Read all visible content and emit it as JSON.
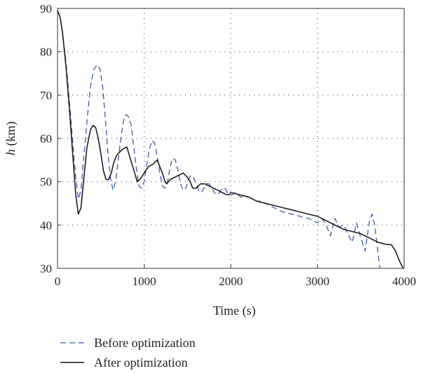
{
  "chart_data": {
    "type": "line",
    "xlabel": "Time (s)",
    "ylabel_var": "h",
    "ylabel_unit": " (km)",
    "xlim": [
      0,
      4000
    ],
    "ylim": [
      30,
      90
    ],
    "xticks": [
      0,
      1000,
      2000,
      3000,
      4000
    ],
    "yticks": [
      30,
      40,
      50,
      60,
      70,
      80,
      90
    ],
    "grid": true,
    "legend_position": "bottom-left, below plot",
    "series": [
      {
        "name": "Before optimization",
        "color": "#3a5aa8",
        "style": "dashed",
        "x": [
          0,
          30,
          60,
          100,
          140,
          180,
          210,
          240,
          270,
          300,
          340,
          380,
          420,
          460,
          490,
          520,
          550,
          580,
          610,
          640,
          670,
          700,
          730,
          760,
          790,
          820,
          850,
          880,
          910,
          940,
          970,
          1000,
          1030,
          1060,
          1090,
          1120,
          1150,
          1180,
          1210,
          1240,
          1270,
          1300,
          1330,
          1360,
          1390,
          1420,
          1450,
          1480,
          1510,
          1540,
          1570,
          1600,
          1630,
          1660,
          1690,
          1720,
          1750,
          1780,
          1810,
          1840,
          1870,
          1900,
          1930,
          1960,
          1990,
          2020,
          2050,
          2080,
          2110,
          2140,
          2170,
          2200,
          2250,
          2300,
          2350,
          2400,
          2450,
          2500,
          2600,
          2700,
          2800,
          2900,
          2950,
          3000,
          3050,
          3100,
          3150,
          3200,
          3250,
          3300,
          3350,
          3400,
          3450,
          3500,
          3550,
          3600,
          3630,
          3660,
          3690,
          3720,
          3740
        ],
        "y": [
          89.5,
          88,
          84,
          77,
          68,
          58,
          51,
          46,
          48,
          55,
          64,
          72,
          76,
          77,
          76,
          72,
          65,
          57,
          51,
          48,
          50,
          55,
          60,
          64,
          65.5,
          65,
          63,
          58,
          53,
          49,
          48.5,
          50,
          54,
          57.5,
          59.5,
          59,
          56,
          52,
          49,
          48.5,
          50,
          53.5,
          55.5,
          55,
          52.5,
          49.5,
          48,
          48.5,
          50.5,
          51.5,
          51,
          49.5,
          48,
          47.5,
          48.5,
          49.5,
          49.5,
          48.5,
          47.5,
          47,
          47.5,
          48.5,
          48.5,
          47.5,
          47,
          47,
          47.5,
          47,
          46.5,
          46.5,
          46.5,
          46.5,
          46,
          45.5,
          45.5,
          45,
          44.5,
          44,
          43,
          42.5,
          42,
          41.5,
          41,
          40.5,
          41.5,
          40,
          37.5,
          41.5,
          39.5,
          40,
          38,
          36,
          40.5,
          37,
          34,
          41,
          42.5,
          40,
          35,
          30,
          28
        ]
      },
      {
        "name": "After optimization",
        "color": "#111111",
        "style": "solid",
        "x": [
          0,
          30,
          60,
          100,
          140,
          180,
          210,
          240,
          270,
          300,
          340,
          380,
          410,
          440,
          470,
          500,
          530,
          560,
          590,
          620,
          650,
          680,
          700,
          750,
          800,
          830,
          860,
          890,
          920,
          950,
          1000,
          1050,
          1100,
          1150,
          1180,
          1210,
          1240,
          1260,
          1300,
          1350,
          1400,
          1450,
          1500,
          1530,
          1560,
          1600,
          1650,
          1700,
          1750,
          1800,
          1850,
          1900,
          1950,
          1980,
          2000,
          2100,
          2200,
          2300,
          2400,
          2500,
          2600,
          2700,
          2800,
          2900,
          3000,
          3100,
          3200,
          3300,
          3400,
          3500,
          3600,
          3700,
          3800,
          3850,
          3900,
          3950,
          3990
        ],
        "y": [
          89.5,
          88,
          84,
          76,
          66,
          55,
          47,
          42.5,
          44,
          50,
          58,
          62,
          63,
          62.5,
          60,
          56.5,
          52.5,
          50.5,
          50.5,
          52,
          54.5,
          56,
          56.5,
          57.5,
          58,
          56,
          54,
          52,
          50,
          50.5,
          52,
          53.5,
          54,
          55,
          53.5,
          52,
          50,
          49.5,
          50.5,
          51,
          51.5,
          52,
          51,
          50,
          48.5,
          48.5,
          49.5,
          49.5,
          49,
          48.5,
          48,
          47.5,
          47,
          47,
          47.5,
          47,
          46.5,
          45.5,
          45,
          44.5,
          44,
          43.5,
          43,
          42.5,
          42,
          41,
          40,
          39,
          38.5,
          38,
          37,
          36,
          35.5,
          35.5,
          34,
          31.5,
          30
        ]
      }
    ]
  }
}
